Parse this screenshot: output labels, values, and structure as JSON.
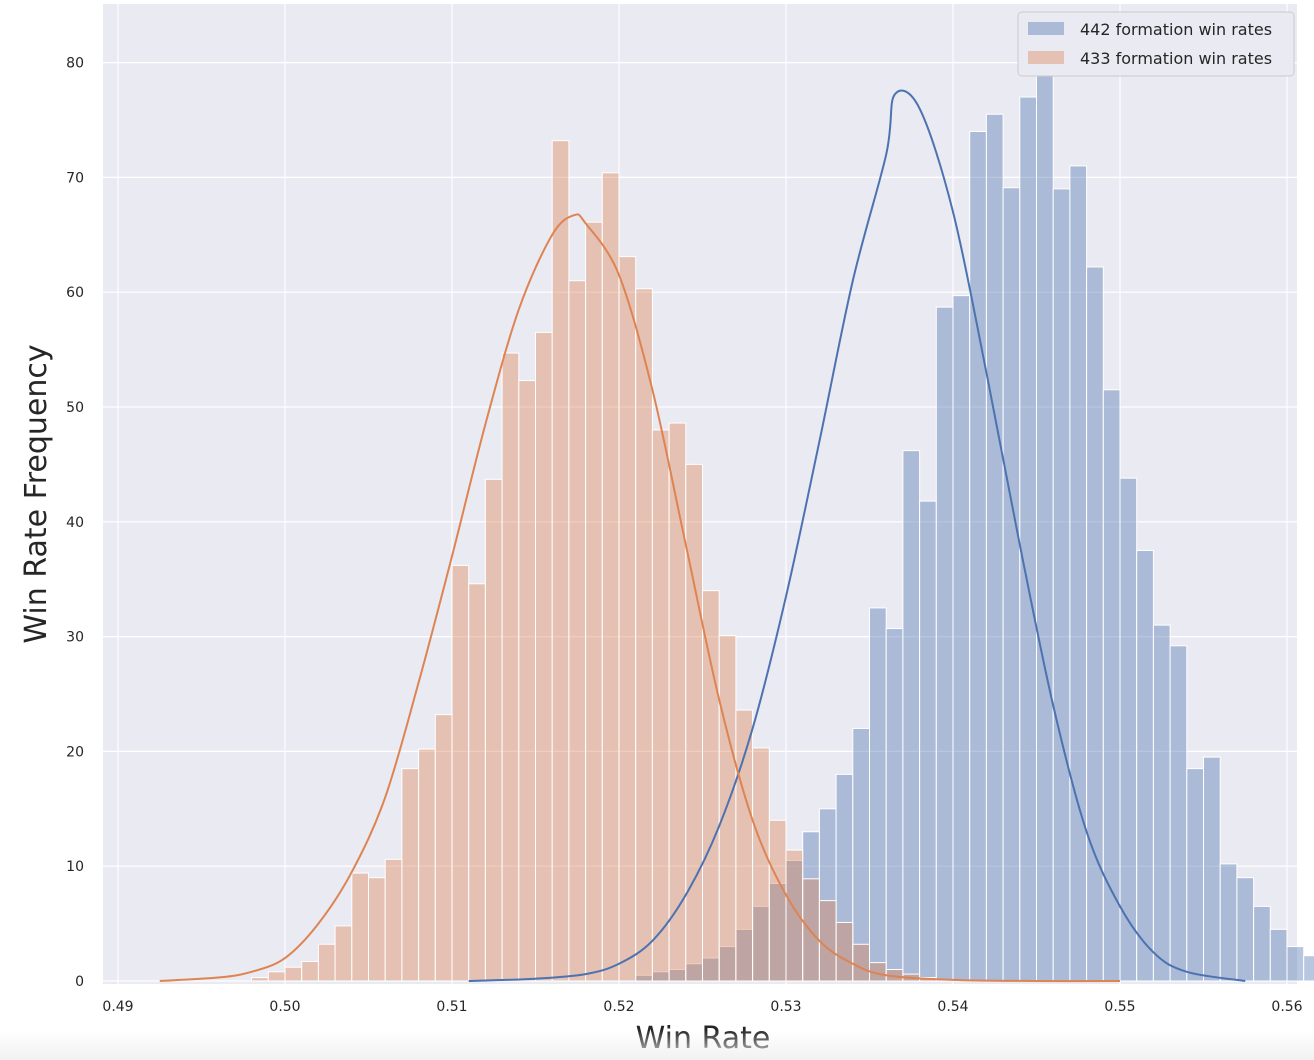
{
  "chart_data": {
    "type": "histogram",
    "title": "",
    "xlabel": "Win Rate",
    "ylabel": "Win Rate Frequency",
    "xlim": [
      0.49,
      0.56
    ],
    "ylim": [
      0,
      85
    ],
    "xticks": [
      "0.49",
      "0.50",
      "0.51",
      "0.52",
      "0.53",
      "0.54",
      "0.55",
      "0.56"
    ],
    "yticks": [
      "0",
      "10",
      "20",
      "30",
      "40",
      "50",
      "60",
      "70",
      "80"
    ],
    "grid": true,
    "legend_position": "top-right",
    "bin_width": 0.001,
    "series": [
      {
        "name": "442 formation win rates",
        "color": "#4c72b0",
        "bins_start": 0.511,
        "values": [
          0,
          0,
          0,
          0,
          0,
          0,
          0,
          0,
          0,
          0,
          0.5,
          0.8,
          1,
          1.5,
          2,
          3,
          4.5,
          6.5,
          8.5,
          10.5,
          13,
          15,
          18,
          22,
          32.5,
          30.7,
          46.2,
          41.8,
          58.7,
          59.7,
          74,
          75.5,
          69.1,
          77,
          81,
          69,
          71,
          62.2,
          51.5,
          43.8,
          37.5,
          31,
          29.2,
          18.5,
          19.5,
          10.2,
          9,
          6.5,
          4.5,
          3,
          2.2,
          1.3,
          0.9,
          0.6,
          0.3,
          0.2
        ],
        "kde": {
          "x": [
            0.511,
            0.515,
            0.518,
            0.52,
            0.522,
            0.524,
            0.526,
            0.528,
            0.53,
            0.532,
            0.534,
            0.536,
            0.5365,
            0.538,
            0.54,
            0.542,
            0.544,
            0.546,
            0.548,
            0.55,
            0.552,
            0.554,
            0.5575
          ],
          "y": [
            0,
            0.2,
            0.6,
            1.5,
            3.5,
            7.5,
            13.5,
            22,
            33.5,
            47,
            61,
            72,
            77.2,
            76,
            67,
            53,
            38,
            24,
            13,
            6.5,
            2.5,
            0.8,
            0
          ]
        }
      },
      {
        "name": "433 formation win rates",
        "color": "#dd8452",
        "bins_start": 0.498,
        "values": [
          0.3,
          0.8,
          1.2,
          1.7,
          3.2,
          4.8,
          9.4,
          9,
          10.6,
          18.5,
          20.2,
          23.2,
          36.2,
          34.6,
          43.7,
          54.7,
          52.3,
          56.5,
          73.2,
          61,
          66.1,
          70.4,
          63.1,
          60.3,
          48,
          48.6,
          45,
          34,
          30.1,
          23.6,
          20.3,
          14,
          11.4,
          8.9,
          7,
          5.1,
          3.2,
          1.6,
          1,
          0.6,
          0.3
        ],
        "kde": {
          "x": [
            0.4925,
            0.496,
            0.498,
            0.5,
            0.502,
            0.504,
            0.506,
            0.508,
            0.51,
            0.512,
            0.514,
            0.516,
            0.5173,
            0.518,
            0.52,
            0.522,
            0.524,
            0.526,
            0.528,
            0.53,
            0.532,
            0.534,
            0.536,
            0.54,
            0.545,
            0.55
          ],
          "y": [
            0,
            0.3,
            0.8,
            2,
            5,
            9.5,
            16,
            26,
            37,
            48.5,
            58.5,
            65,
            66.7,
            66,
            61.5,
            51.5,
            38,
            24.5,
            14,
            7.5,
            3.5,
            1.5,
            0.5,
            0.1,
            0,
            0
          ]
        }
      }
    ]
  }
}
